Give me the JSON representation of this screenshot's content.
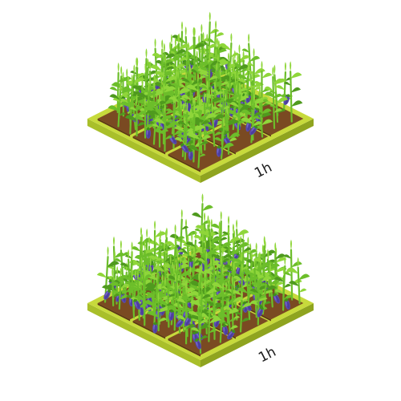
{
  "plots": [
    {
      "id": "top",
      "timer_label": "1h"
    },
    {
      "id": "bottom",
      "timer_label": "1h"
    }
  ],
  "colors": {
    "background": "#ffffff",
    "frame_top": "#c7da3c",
    "frame_left": "#a9bf2a",
    "frame_right": "#8fa41f",
    "soil": "#7a4a22",
    "soil_dark": "#5b3516",
    "leaf_light": "#8fd63a",
    "leaf_mid": "#6cbe2a",
    "leaf_dark": "#4f9a1e",
    "eggplant": "#5a4bb0",
    "eggplant_dark": "#3b2f86",
    "calyx": "#3f8f1c"
  },
  "icons": {
    "crop": "eggplant-crop-icon",
    "plot": "farm-plot-icon"
  }
}
